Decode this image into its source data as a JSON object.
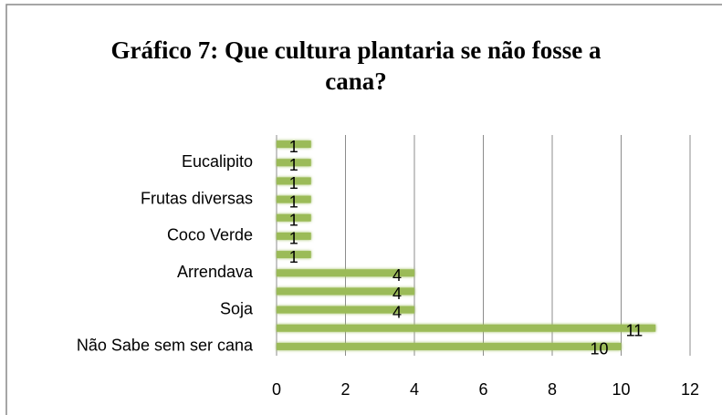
{
  "chart_data": {
    "type": "bar",
    "orientation": "horizontal",
    "title": "Gráfico 7: Que cultura plantaria se não fosse a cana?",
    "categories": [
      "Não Sabe sem ser cana",
      null,
      "Soja",
      null,
      "Arrendava",
      null,
      "Coco Verde",
      null,
      "Frutas diversas",
      null,
      "Eucalipito",
      null
    ],
    "values": [
      10,
      11,
      4,
      4,
      4,
      1,
      1,
      1,
      1,
      1,
      1,
      1
    ],
    "color": "#9bbb59",
    "xlim": [
      0,
      12
    ],
    "xticks": [
      0,
      2,
      4,
      6,
      8,
      10,
      12
    ],
    "grid": true
  }
}
